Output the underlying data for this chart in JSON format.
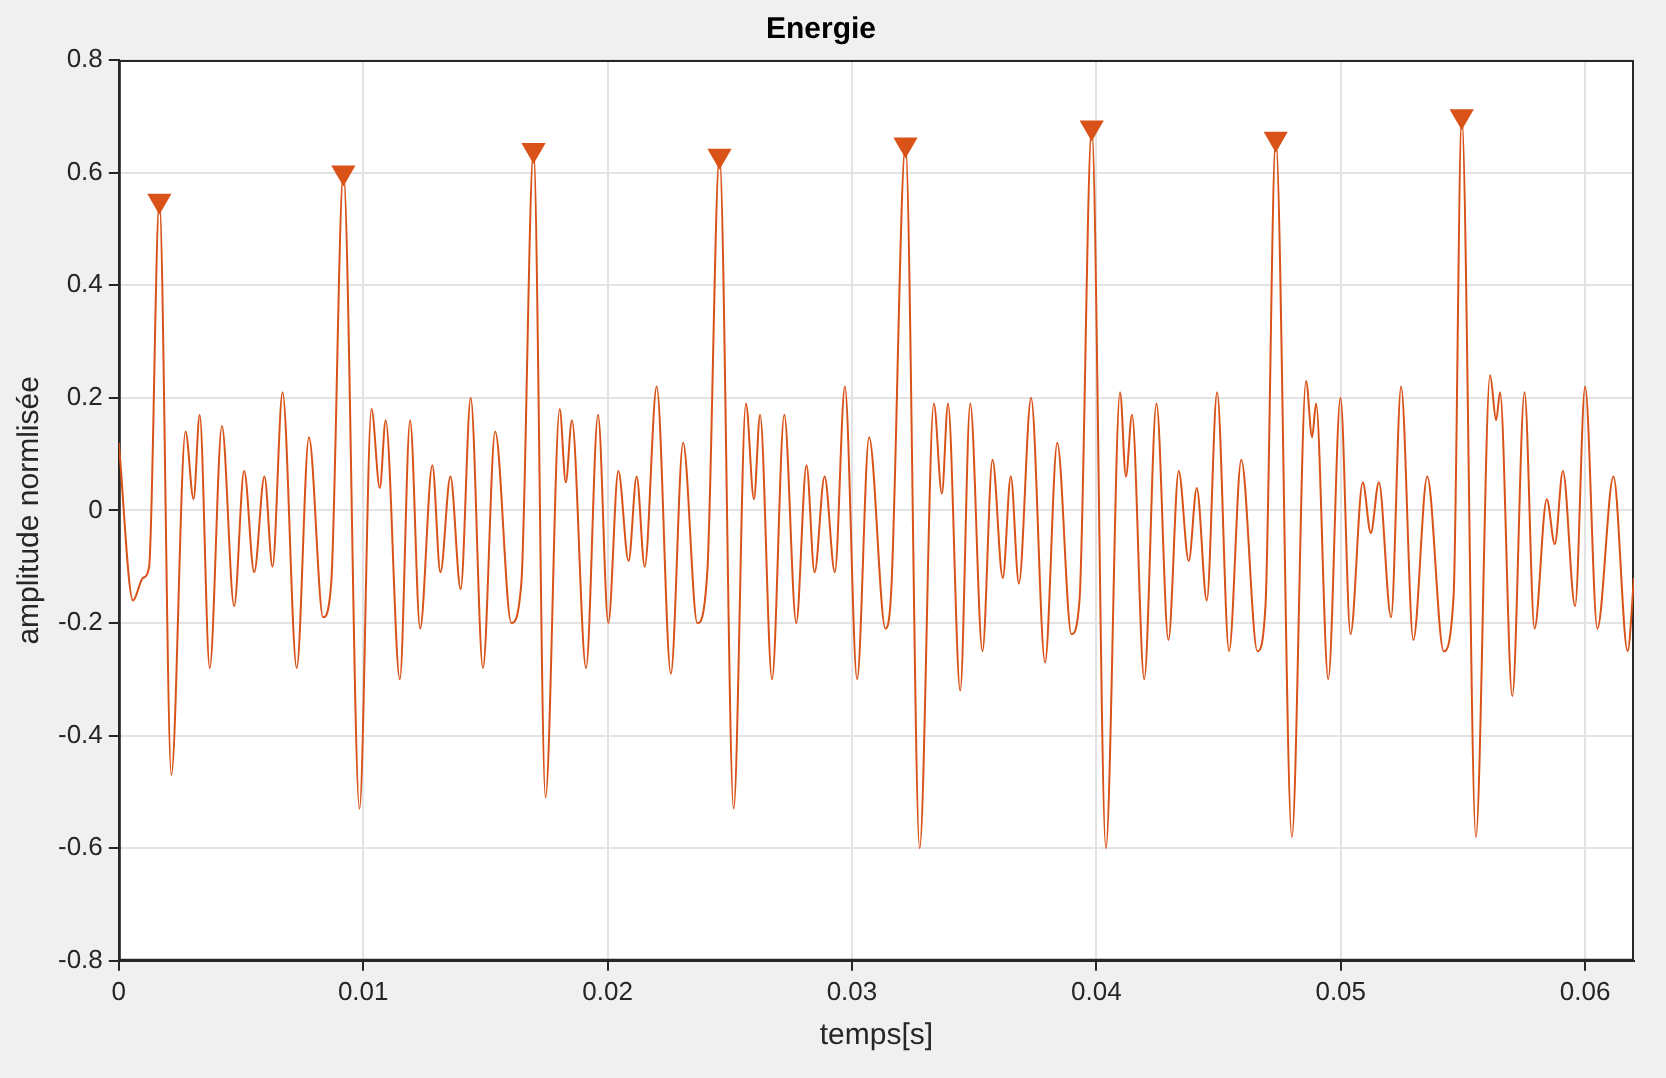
{
  "chart_data": {
    "type": "line",
    "title": "Energie",
    "xlabel": "temps[s]",
    "ylabel": "amplitude normlisée",
    "xlim": [
      0,
      0.062
    ],
    "xticks": [
      0,
      0.01,
      0.02,
      0.03,
      0.04,
      0.05,
      0.06
    ],
    "ylim": [
      -0.8,
      0.8
    ],
    "yticks": [
      -0.8,
      -0.6,
      -0.4,
      -0.2,
      0,
      0.2,
      0.4,
      0.6,
      0.8
    ],
    "grid": true,
    "legend": false,
    "line_style": "solid",
    "marker": "none",
    "series": [
      {
        "color": "#d95319",
        "x": [
          0,
          0.00058,
          0.00099,
          0.00124,
          0.00166,
          0.00215,
          0.00273,
          0.00306,
          0.00331,
          0.00372,
          0.00422,
          0.00472,
          0.00513,
          0.00554,
          0.00596,
          0.00629,
          0.0067,
          0.00728,
          0.00778,
          0.00836,
          0.00869,
          0.00919,
          0.00985,
          0.01034,
          0.01068,
          0.01092,
          0.0115,
          0.01192,
          0.01233,
          0.01283,
          0.01316,
          0.01357,
          0.01399,
          0.0144,
          0.0149,
          0.0154,
          0.01606,
          0.01647,
          0.01697,
          0.01746,
          0.01804,
          0.01829,
          0.01854,
          0.01912,
          0.01961,
          0.02003,
          0.02044,
          0.02086,
          0.02119,
          0.02152,
          0.02201,
          0.02259,
          0.02309,
          0.02367,
          0.02408,
          0.02458,
          0.02516,
          0.02566,
          0.02599,
          0.02624,
          0.02673,
          0.02723,
          0.02772,
          0.02814,
          0.02847,
          0.02888,
          0.0293,
          0.02971,
          0.03021,
          0.0307,
          0.03137,
          0.03161,
          0.03219,
          0.03277,
          0.03335,
          0.03368,
          0.03393,
          0.03443,
          0.03484,
          0.03534,
          0.03575,
          0.03617,
          0.0365,
          0.03683,
          0.03733,
          0.0379,
          0.0384,
          0.03898,
          0.03931,
          0.03981,
          0.04039,
          0.04097,
          0.04121,
          0.04146,
          0.04196,
          0.04246,
          0.04295,
          0.04337,
          0.04378,
          0.04411,
          0.04452,
          0.04494,
          0.04543,
          0.04593,
          0.04659,
          0.04692,
          0.04734,
          0.048,
          0.04858,
          0.04883,
          0.04899,
          0.04949,
          0.04999,
          0.0504,
          0.0509,
          0.05123,
          0.05156,
          0.05206,
          0.05247,
          0.05297,
          0.05354,
          0.05421,
          0.05462,
          0.05495,
          0.05553,
          0.05611,
          0.05636,
          0.05652,
          0.05702,
          0.05752,
          0.05793,
          0.05843,
          0.05876,
          0.05909,
          0.05959,
          0.06,
          0.0605,
          0.06116,
          0.06174,
          0.062
        ],
        "values": [
          0.12,
          -0.16,
          -0.12,
          -0.1,
          0.55,
          -0.47,
          0.14,
          0.02,
          0.17,
          -0.28,
          0.15,
          -0.17,
          0.07,
          -0.11,
          0.06,
          -0.1,
          0.21,
          -0.28,
          0.13,
          -0.19,
          -0.13,
          0.6,
          -0.53,
          0.18,
          0.04,
          0.16,
          -0.3,
          0.16,
          -0.21,
          0.08,
          -0.11,
          0.06,
          -0.14,
          0.2,
          -0.28,
          0.14,
          -0.2,
          -0.13,
          0.64,
          -0.51,
          0.18,
          0.05,
          0.16,
          -0.28,
          0.17,
          -0.2,
          0.07,
          -0.09,
          0.06,
          -0.1,
          0.22,
          -0.29,
          0.12,
          -0.2,
          -0.11,
          0.63,
          -0.53,
          0.19,
          0.02,
          0.17,
          -0.3,
          0.17,
          -0.2,
          0.08,
          -0.11,
          0.06,
          -0.11,
          0.22,
          -0.3,
          0.13,
          -0.21,
          -0.14,
          0.65,
          -0.6,
          0.19,
          0.03,
          0.19,
          -0.32,
          0.19,
          -0.25,
          0.09,
          -0.12,
          0.06,
          -0.13,
          0.2,
          -0.27,
          0.12,
          -0.22,
          -0.16,
          0.68,
          -0.6,
          0.21,
          0.06,
          0.17,
          -0.3,
          0.19,
          -0.23,
          0.07,
          -0.09,
          0.04,
          -0.16,
          0.21,
          -0.25,
          0.09,
          -0.25,
          -0.17,
          0.66,
          -0.58,
          0.23,
          0.13,
          0.19,
          -0.3,
          0.2,
          -0.22,
          0.05,
          -0.04,
          0.05,
          -0.19,
          0.22,
          -0.23,
          0.06,
          -0.25,
          -0.15,
          0.7,
          -0.58,
          0.24,
          0.16,
          0.21,
          -0.33,
          0.21,
          -0.21,
          0.02,
          -0.06,
          0.07,
          -0.17,
          0.22,
          -0.21,
          0.06,
          -0.25,
          -0.12
        ]
      },
      {
        "type": "scatter",
        "color": "#d95319",
        "marker": "triangle",
        "x": [
          0.00166,
          0.00919,
          0.01697,
          0.02458,
          0.03219,
          0.03981,
          0.04734,
          0.05495
        ],
        "values": [
          0.55,
          0.6,
          0.64,
          0.63,
          0.65,
          0.68,
          0.66,
          0.7
        ]
      }
    ]
  }
}
